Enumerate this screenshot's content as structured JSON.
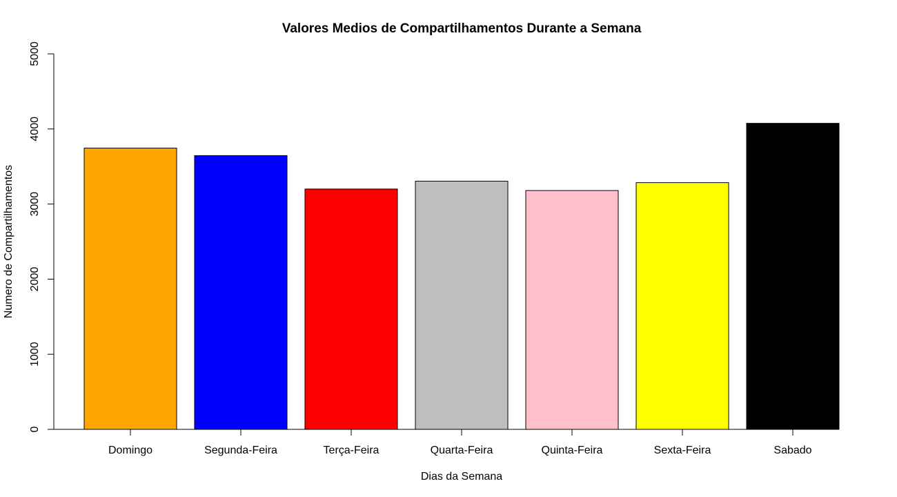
{
  "chart_data": {
    "type": "bar",
    "title": "Valores Medios de Compartilhamentos Durante a  Semana",
    "xlabel": "Dias da Semana",
    "ylabel": "Numero de Compartilhamentos",
    "categories": [
      "Domingo",
      "Segunda-Feira",
      "Terça-Feira",
      "Quarta-Feira",
      "Quinta-Feira",
      "Sexta-Feira",
      "Sabado"
    ],
    "values": [
      3745,
      3645,
      3200,
      3305,
      3180,
      3285,
      4075
    ],
    "colors": [
      "#FFA500",
      "#0000FF",
      "#FF0000",
      "#BEBEBE",
      "#FFC0CB",
      "#FFFF00",
      "#000000"
    ],
    "ylim": [
      0,
      5000
    ],
    "yticks": [
      0,
      1000,
      2000,
      3000,
      4000,
      5000
    ],
    "grid": false,
    "legend": "none"
  }
}
